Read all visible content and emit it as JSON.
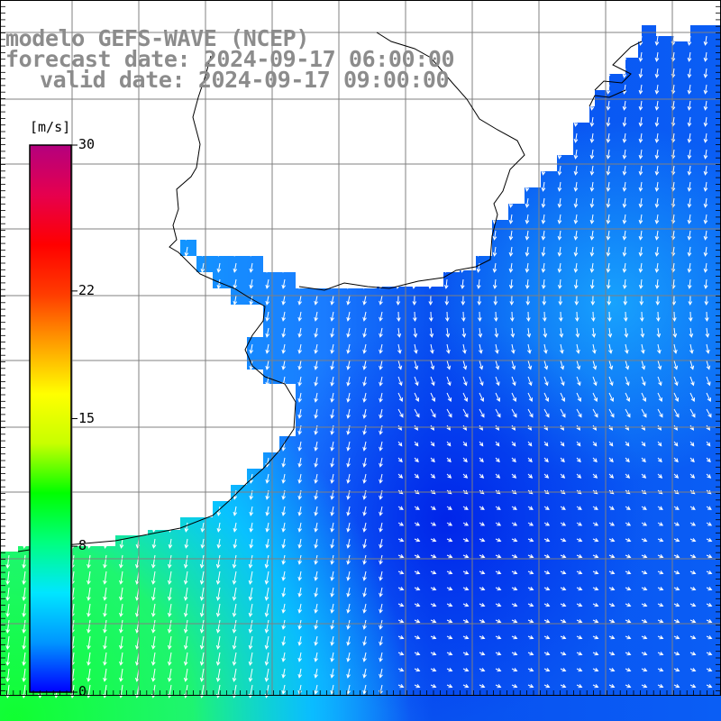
{
  "title": {
    "line1": "modelo GEFS-WAVE (NCEP)",
    "line2": "forecast date: 2024-09-17 06:00:00",
    "line3": "valid date: 2024-09-17 09:00:00"
  },
  "colorbar": {
    "unit": "[m/s]",
    "ticks": [
      {
        "label": "30",
        "value": 30
      },
      {
        "label": "22",
        "value": 22
      },
      {
        "label": "15",
        "value": 15
      },
      {
        "label": "8",
        "value": 8
      },
      {
        "label": "0",
        "value": 0
      }
    ],
    "range": [
      0,
      30
    ],
    "colors": [
      "#0000ff",
      "#0096ff",
      "#00e6ff",
      "#00ff80",
      "#00ff00",
      "#c8ff00",
      "#ffff00",
      "#ffa000",
      "#ff3c00",
      "#ff0000",
      "#e6004e",
      "#b4007e"
    ]
  },
  "map": {
    "land_color": "#ffffff",
    "grid_color": "#808080",
    "coast_color": "#000000",
    "vector_color": "#ffffff",
    "wind_field": "wind speed (m/s) with direction vectors"
  }
}
